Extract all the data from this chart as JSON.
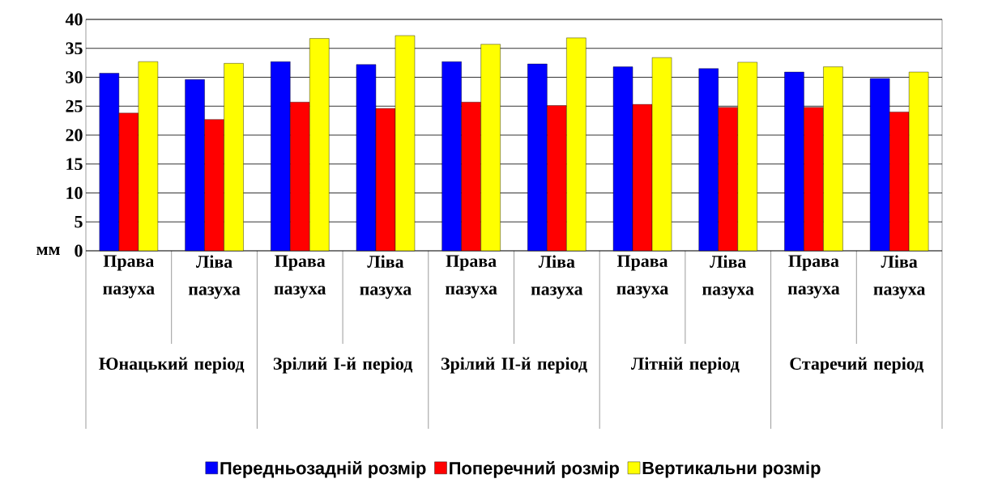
{
  "chart_data": {
    "type": "bar",
    "categories": [
      "Права пазуха",
      "Ліва пазуха",
      "Права пазуха",
      "Ліва пазуха",
      "Права пазуха",
      "Ліва пазуха",
      "Права пазуха",
      "Ліва пазуха",
      "Права пазуха",
      "Ліва пазуха"
    ],
    "series": [
      {
        "name": "Передньозадній розмір",
        "color": "#0000ff",
        "values": [
          30.7,
          29.6,
          32.7,
          32.2,
          32.7,
          32.3,
          31.8,
          31.5,
          30.9,
          29.8
        ]
      },
      {
        "name": "Поперечний розмір",
        "color": "#ff0000",
        "values": [
          23.8,
          22.7,
          25.7,
          24.6,
          25.7,
          25.1,
          25.3,
          24.8,
          24.8,
          24.0
        ]
      },
      {
        "name": "Вертикальни розмір",
        "color": "#ffff00",
        "values": [
          32.7,
          32.4,
          36.7,
          37.2,
          35.7,
          36.8,
          33.4,
          32.6,
          31.8,
          30.9
        ]
      }
    ],
    "ylabel": "мм",
    "ylim": [
      0,
      40
    ],
    "yticks": [
      0,
      5,
      10,
      15,
      20,
      25,
      30,
      35,
      40
    ],
    "annotations": [
      "Юнацький період",
      "Зрілий I-й період",
      "Зрілий II-й період",
      "Літній період",
      "Старечий період"
    ],
    "grid": "y",
    "legend": "bottom"
  }
}
